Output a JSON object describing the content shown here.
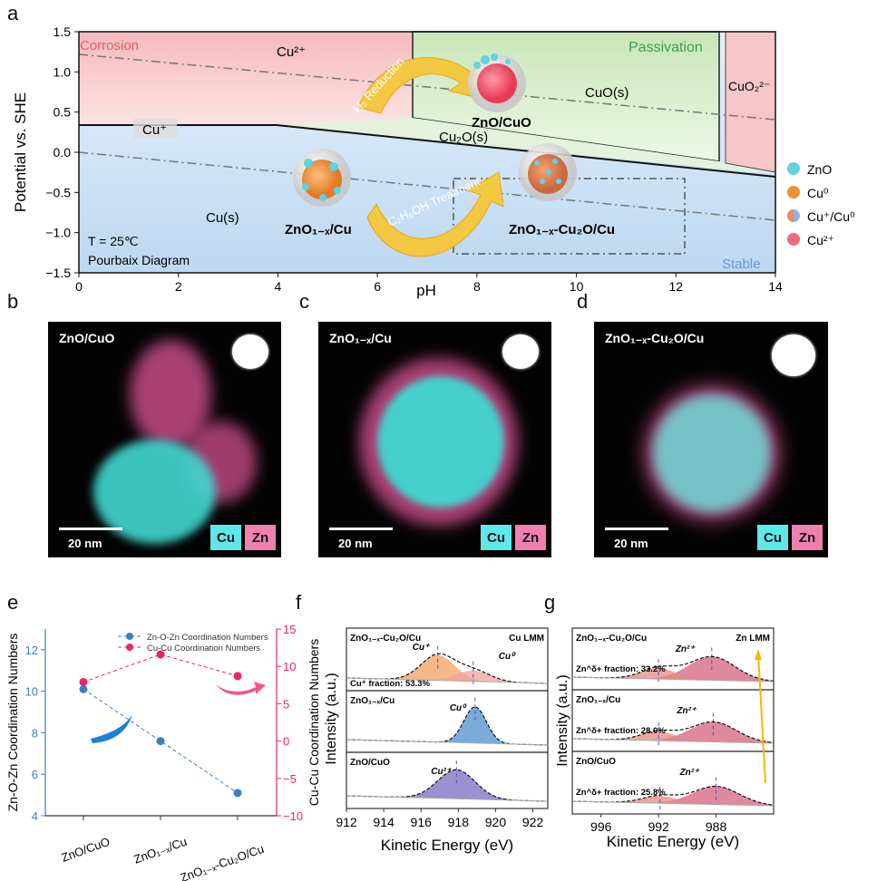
{
  "panel_labels": {
    "a": "a",
    "b": "b",
    "c": "c",
    "d": "d",
    "e": "e",
    "f": "f",
    "g": "g"
  },
  "pourbaix": {
    "xlabel": "pH",
    "ylabel": "Potential vs. SHE",
    "xticks": [
      "0",
      "2",
      "4",
      "6",
      "8",
      "10",
      "12",
      "14"
    ],
    "yticks": [
      "1.5",
      "1.0",
      "0.5",
      "0.0",
      "−0.5",
      "−1.0",
      "−1.5"
    ],
    "xlim": [
      0,
      14
    ],
    "ylim": [
      -1.5,
      1.5
    ],
    "regions": {
      "corrosion": "Corrosion",
      "passivation": "Passivation",
      "stable": "Stable",
      "cu2plus": "Cu²⁺",
      "cuplus": "Cu⁺",
      "cuo": "CuO(s)",
      "cu2o": "Cu₂O(s)",
      "cus": "Cu(s)",
      "cuo2": "CuO₂²⁻"
    },
    "colors": {
      "corrosion": "#f7c6c8",
      "passivation": "#d6ecc8",
      "stable": "#d4e6f6",
      "arrow": "#f5c842"
    },
    "conditions": [
      "T = 25℃",
      "Pourbaix Diagram"
    ],
    "arrows": {
      "h2": "H₂ Reduction",
      "ethanol": "C₂H₅OH Treatment"
    },
    "samples": {
      "zno_cuo": "ZnO/CuO",
      "zno_cu": "ZnO₁₋ₓ/Cu",
      "zno_cu2o_cu": "ZnO₁₋ₓ-Cu₂O/Cu"
    },
    "legend": [
      {
        "label": "ZnO",
        "color": "#5fd3df"
      },
      {
        "label": "Cu⁰",
        "color": "#f0913a"
      },
      {
        "label": "Cu⁺/Cu⁰",
        "color": "#8fb5e6"
      },
      {
        "label": "Cu²⁺",
        "color": "#f06a80"
      }
    ]
  },
  "eds_maps": [
    {
      "title": "ZnO/CuO",
      "scale": "20 nm",
      "cu": "Cu",
      "zn": "Zn"
    },
    {
      "title": "ZnO₁₋ₓ/Cu",
      "scale": "20 nm",
      "cu": "Cu",
      "zn": "Zn"
    },
    {
      "title": "ZnO₁₋ₓ-Cu₂O/Cu",
      "scale": "20 nm",
      "cu": "Cu",
      "zn": "Zn"
    }
  ],
  "chart_data": [
    {
      "panel": "e",
      "type": "line",
      "categories": [
        "ZnO/CuO",
        "ZnO₁₋ₓ/Cu",
        "ZnO₁₋ₓ-Cu₂O/Cu"
      ],
      "ylabel": "Zn-O-Zn Coordination Numbers",
      "y2label": "Cu-Cu Coordination Numbers",
      "ylim": [
        4,
        13
      ],
      "y2lim": [
        -10,
        15
      ],
      "yticks": [
        "4",
        "6",
        "8",
        "10",
        "12"
      ],
      "y2ticks": [
        "−10",
        "−5",
        "0",
        "5",
        "10",
        "15"
      ],
      "legend_placement": "top-right",
      "series": [
        {
          "name": "Zn-O-Zn Coordination Numbers",
          "axis": "left",
          "color": "#3a7fc4",
          "values": [
            10.1,
            7.6,
            5.1
          ]
        },
        {
          "name": "Cu-Cu Coordination Numbers",
          "axis": "right",
          "color": "#f0206e",
          "values": [
            7.9,
            11.6,
            8.7
          ]
        }
      ]
    },
    {
      "panel": "f",
      "type": "line",
      "title": "Cu LMM",
      "xlabel": "Kinetic Energy (eV)",
      "ylabel": "Intensity (a.u.)",
      "xlim": [
        912,
        922.8
      ],
      "xticks": [
        "912",
        "914",
        "916",
        "918",
        "920",
        "922"
      ],
      "spectra": [
        {
          "sample": "ZnO₁₋ₓ-Cu₂O/Cu",
          "peaks": [
            {
              "label": "Cu⁺",
              "center": 916.9,
              "color": "#f3a060"
            },
            {
              "label": "Cu⁰",
              "center": 918.8,
              "color": "#f4a0a0"
            }
          ],
          "annotation": "Cu⁺ fraction: 53.3%"
        },
        {
          "sample": "ZnO₁₋ₓ/Cu",
          "peaks": [
            {
              "label": "Cu⁰",
              "center": 918.9,
              "color": "#4d8fcf"
            }
          ]
        },
        {
          "sample": "ZnO/CuO",
          "peaks": [
            {
              "label": "Cu²⁺",
              "center": 917.9,
              "color": "#7a6cc0"
            }
          ]
        }
      ]
    },
    {
      "panel": "g",
      "type": "line",
      "title": "Zn LMM",
      "xlabel": "Kinetic Energy (eV)",
      "ylabel": "Intensity (a.u.)",
      "xlim": [
        998,
        984
      ],
      "xticks": [
        "996",
        "992",
        "988"
      ],
      "spectra": [
        {
          "sample": "ZnO₁₋ₓ-Cu₂O/Cu",
          "peaks": [
            {
              "label": "Zn²⁺",
              "center": 988.3
            },
            {
              "label": "Zn^δ+",
              "center": 992.0
            }
          ],
          "annotation": "Zn^δ+ fraction: 33.2%"
        },
        {
          "sample": "ZnO₁₋ₓ/Cu",
          "peaks": [
            {
              "label": "Zn²⁺",
              "center": 988.2
            },
            {
              "label": "Zn^δ+",
              "center": 992.0
            }
          ],
          "annotation": "Zn^δ+ fraction: 28.0%"
        },
        {
          "sample": "ZnO/CuO",
          "peaks": [
            {
              "label": "Zn²⁺",
              "center": 988.0
            },
            {
              "label": "Zn^δ+",
              "center": 991.9
            }
          ],
          "annotation": "Zn^δ+ fraction: 25.8%"
        }
      ]
    }
  ]
}
